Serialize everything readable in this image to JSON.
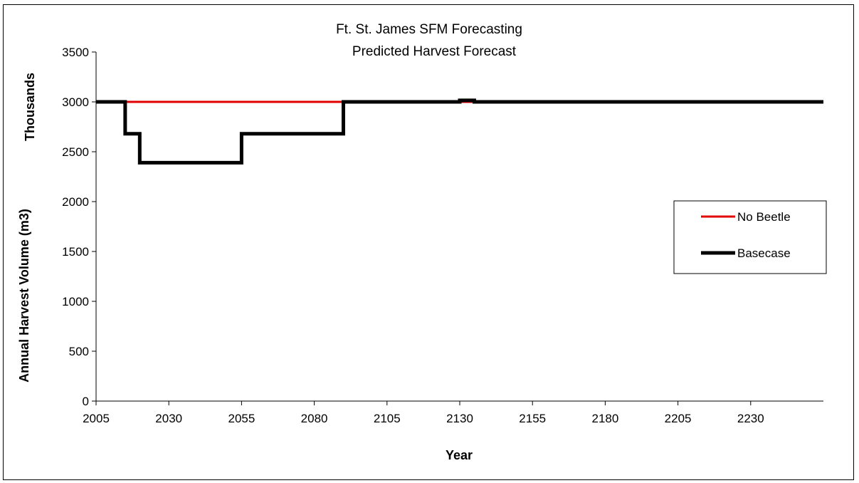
{
  "chart_data": {
    "type": "line",
    "title": "Ft. St. James SFM Forecasting",
    "subtitle": "Predicted Harvest Forecast",
    "xlabel": "Year",
    "ylabel": "Annual Harvest Volume (m3)",
    "ylabel_units": "Thousands",
    "xlim": [
      2005,
      2255
    ],
    "ylim": [
      0,
      3500
    ],
    "x_ticks": [
      2005,
      2030,
      2055,
      2080,
      2105,
      2130,
      2155,
      2180,
      2205,
      2230
    ],
    "y_ticks": [
      0,
      500,
      1000,
      1500,
      2000,
      2500,
      3000,
      3500
    ],
    "grid": false,
    "legend_position": "right",
    "step": true,
    "series": [
      {
        "name": "No Beetle",
        "color": "#e00000",
        "points": [
          [
            2005,
            3000
          ],
          [
            2255,
            3000
          ]
        ]
      },
      {
        "name": "Basecase",
        "color": "#000000",
        "points": [
          [
            2005,
            3000
          ],
          [
            2015,
            3000
          ],
          [
            2015,
            2680
          ],
          [
            2020,
            2680
          ],
          [
            2020,
            2390
          ],
          [
            2055,
            2390
          ],
          [
            2055,
            2680
          ],
          [
            2090,
            2680
          ],
          [
            2090,
            3000
          ],
          [
            2130,
            3000
          ],
          [
            2130,
            3015
          ],
          [
            2135,
            3015
          ],
          [
            2135,
            3000
          ],
          [
            2255,
            3000
          ]
        ]
      }
    ]
  }
}
